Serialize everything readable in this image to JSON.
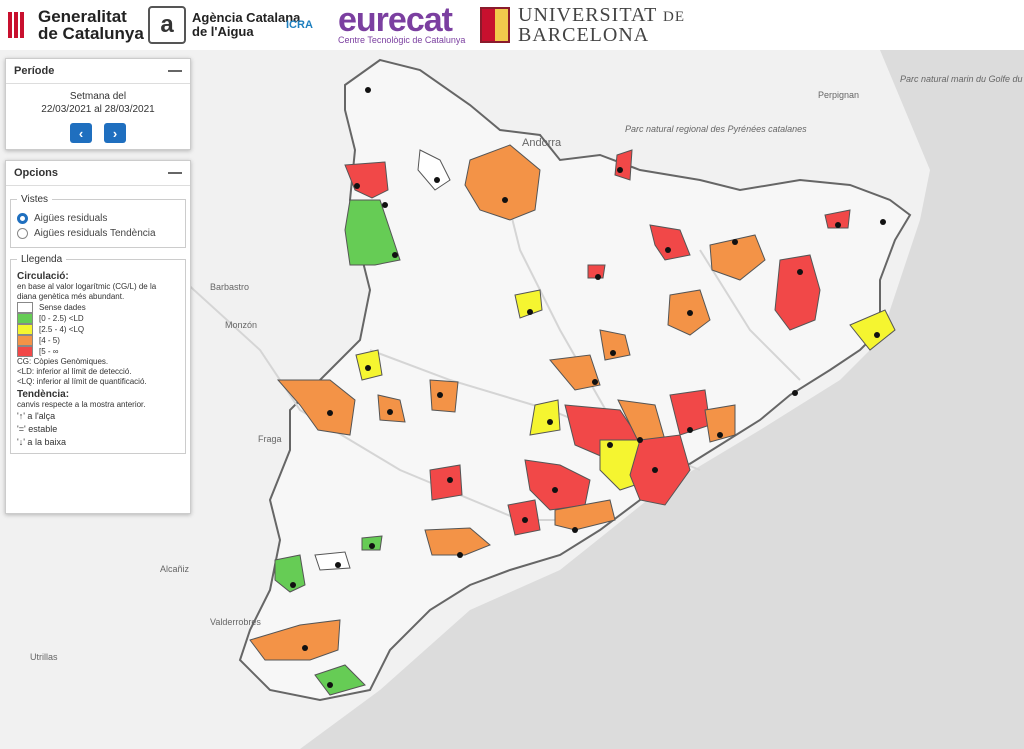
{
  "header": {
    "generalitat": [
      "Generalitat",
      "de Catalunya"
    ],
    "aca": [
      "Agència Catalana",
      "de l'Aigua"
    ],
    "icra": "ICRA",
    "eurecat": "eurecat",
    "eurecat_sub": "Centre Tecnològic de Catalunya",
    "ub": [
      "UNIVERSITAT",
      "DE",
      "BARCELONA"
    ]
  },
  "period_panel": {
    "title": "Període",
    "line1": "Setmana del",
    "line2": "22/03/2021 al 28/03/2021",
    "prev_label": "‹",
    "next_label": "›"
  },
  "options_panel": {
    "title": "Opcions",
    "views_legend": "Vistes",
    "view_options": [
      "Aigües residuals",
      "Aigües residuals Tendència"
    ],
    "selected_view": 0,
    "legend_title": "Llegenda",
    "circ_title": "Circulació:",
    "circ_desc": [
      "en base al valor logarítmic (CG/L) de la",
      "diana genètica més abundant."
    ],
    "classes": [
      {
        "label": "Sense dades",
        "color": "#ffffff"
      },
      {
        "label": "[0 - 2.5) <LD",
        "color": "#66cc55"
      },
      {
        "label": "[2.5 - 4) <LQ",
        "color": "#f5f530"
      },
      {
        "label": "[4 - 5)",
        "color": "#f39347"
      },
      {
        "label": "[5 - ∞",
        "color": "#f14848"
      }
    ],
    "notes": [
      "CG: Còpies Genòmiques.",
      "<LD: inferior al límit de detecció.",
      "<LQ: inferior al límit de quantificació."
    ],
    "trend_title": "Tendència:",
    "trend_desc": "canvis respecte a la mostra anterior.",
    "trend_items": [
      "'↑' a l'alça",
      "'=' estable",
      "'↓' a la baixa"
    ]
  },
  "map": {
    "place_labels": [
      "Andorra",
      "Perpignan",
      "Parc natural marin du Golfe du Lion",
      "Parc natural regional des Pyrénées catalanes",
      "Barbastro",
      "Monzón",
      "Fraga",
      "Alcañiz",
      "Valderrobres",
      "Utrillas"
    ]
  }
}
